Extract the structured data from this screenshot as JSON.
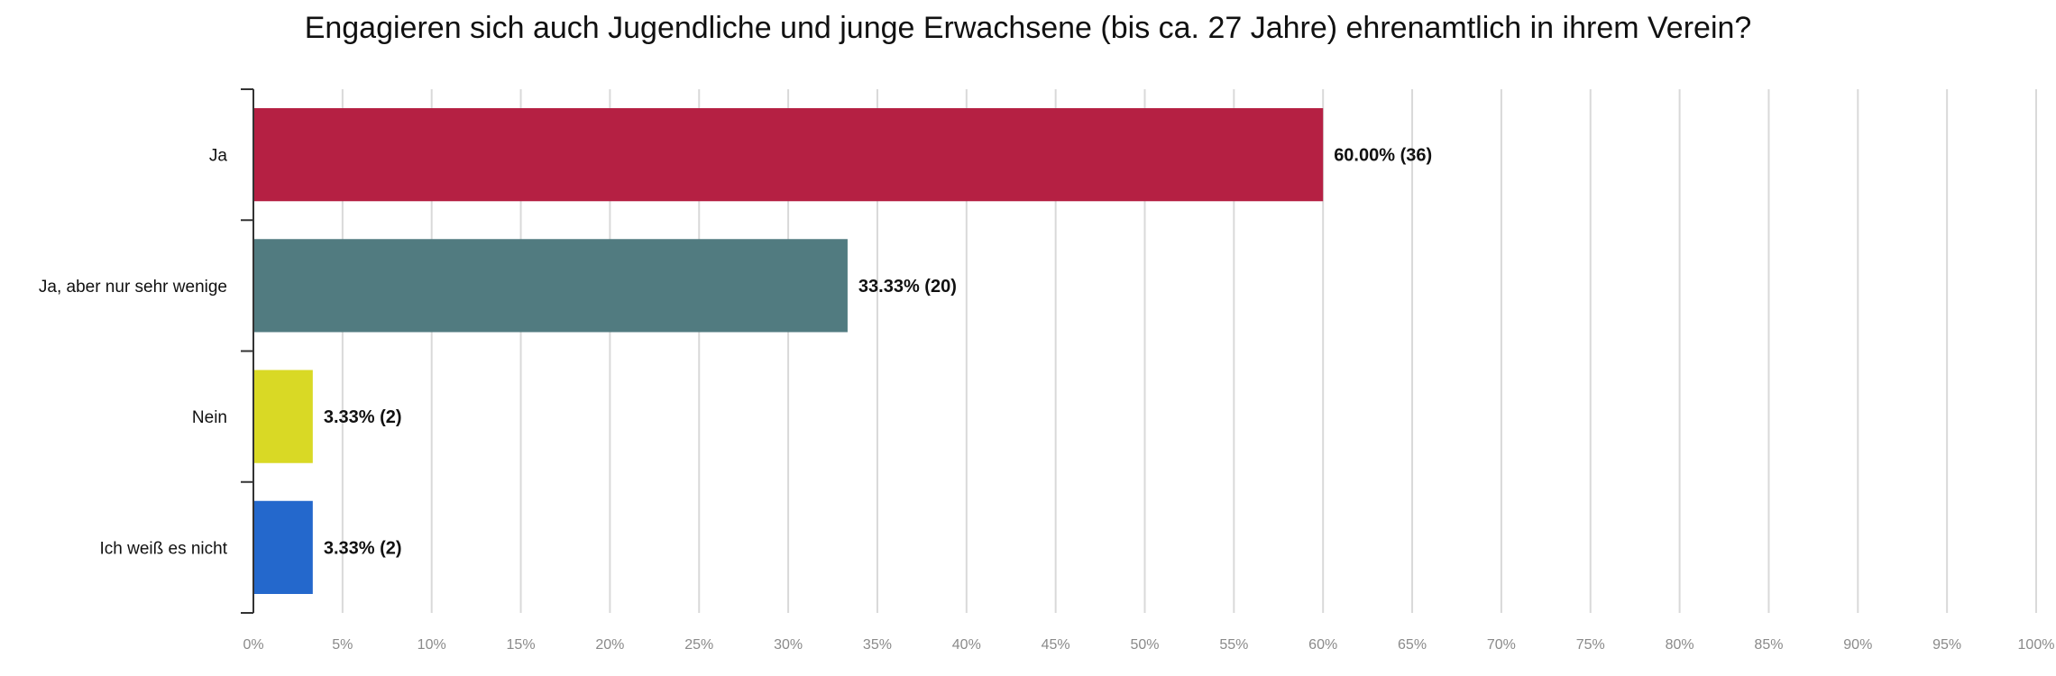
{
  "chart_data": {
    "type": "bar",
    "orientation": "horizontal",
    "title": "Engagieren sich auch Jugendliche und junge Erwachsene (bis ca. 27 Jahre) ehrenamtlich in ihrem Verein?",
    "categories": [
      "Ja",
      "Ja, aber nur sehr wenige",
      "Nein",
      "Ich weiß es nicht"
    ],
    "values": [
      60.0,
      33.33,
      3.33,
      3.33
    ],
    "data_labels": [
      "60.00% (36)",
      "33.33% (20)",
      "3.33% (2)",
      "3.33% (2)"
    ],
    "colors": [
      "#b52043",
      "#517b80",
      "#d9d925",
      "#2468cc"
    ],
    "xlim": [
      0,
      100
    ],
    "x_ticks": [
      "0%",
      "5%",
      "10%",
      "15%",
      "20%",
      "25%",
      "30%",
      "35%",
      "40%",
      "45%",
      "50%",
      "55%",
      "60%",
      "65%",
      "70%",
      "75%",
      "80%",
      "85%",
      "90%",
      "95%",
      "100%"
    ],
    "xlabel": "",
    "ylabel": "",
    "grid": true
  }
}
